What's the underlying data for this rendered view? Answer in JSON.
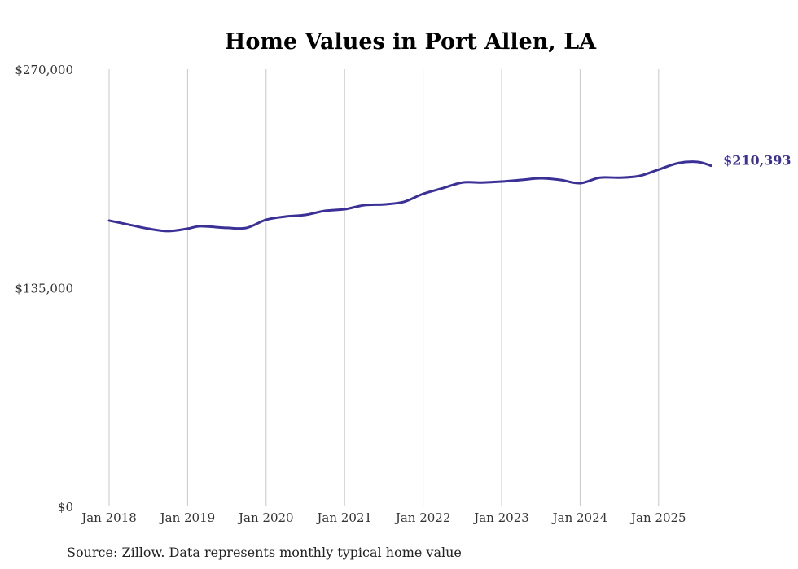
{
  "chart_data": {
    "type": "line",
    "title": "Home Values in Port Allen, LA",
    "source": "Source: Zillow. Data represents monthly typical home value",
    "xlabel": "",
    "ylabel": "",
    "ylim": [
      0,
      270000
    ],
    "y_ticks": [
      0,
      135000,
      270000
    ],
    "y_tick_labels": [
      "$0",
      "$135,000",
      "$270,000"
    ],
    "x_ticks": [
      "2018-01",
      "2019-01",
      "2020-01",
      "2021-01",
      "2022-01",
      "2023-01",
      "2024-01",
      "2025-01"
    ],
    "x_tick_labels": [
      "Jan 2018",
      "Jan 2019",
      "Jan 2020",
      "Jan 2021",
      "Jan 2022",
      "Jan 2023",
      "Jan 2024",
      "Jan 2025"
    ],
    "grid": "vertical",
    "line_color": "#3a3096",
    "end_label": "$210,393",
    "series": [
      {
        "name": "Typical home value",
        "x": [
          "2018-01",
          "2018-04",
          "2018-07",
          "2018-10",
          "2019-01",
          "2019-03",
          "2019-07",
          "2019-10",
          "2020-01",
          "2020-04",
          "2020-07",
          "2020-10",
          "2021-01",
          "2021-04",
          "2021-07",
          "2021-10",
          "2022-01",
          "2022-04",
          "2022-07",
          "2022-10",
          "2023-01",
          "2023-04",
          "2023-07",
          "2023-10",
          "2024-01",
          "2024-04",
          "2024-07",
          "2024-10",
          "2025-01",
          "2025-04",
          "2025-07",
          "2025-09"
        ],
        "values": [
          176500,
          174000,
          171500,
          170000,
          171500,
          173000,
          172000,
          172000,
          177000,
          179000,
          180000,
          182500,
          183500,
          186000,
          186500,
          188000,
          193000,
          196500,
          200000,
          200000,
          200600,
          201600,
          202600,
          201600,
          199600,
          203000,
          203000,
          204000,
          208000,
          212000,
          212700,
          210393
        ]
      }
    ]
  }
}
